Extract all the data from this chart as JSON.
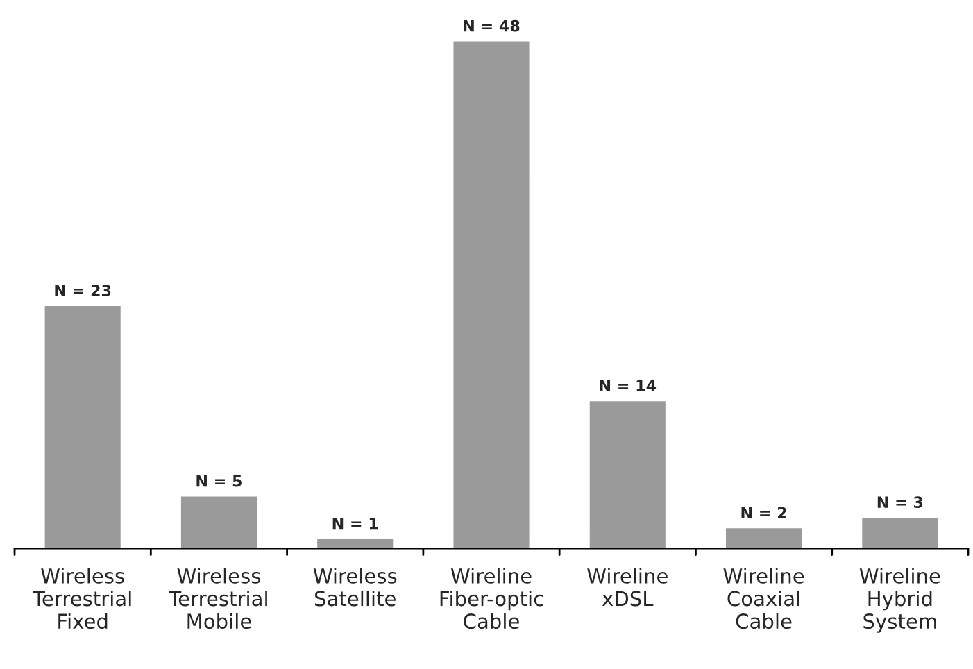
{
  "chart_data": {
    "type": "bar",
    "categories": [
      "Wireless\nTerrestrial\nFixed",
      "Wireless\nTerrestrial\nMobile",
      "Wireless\nSatellite",
      "Wireline\nFiber-optic\nCable",
      "Wireline\nxDSL",
      "Wireline\nCoaxial\nCable",
      "Wireline\nHybrid\nSystem"
    ],
    "values": [
      23,
      5,
      1,
      48,
      14,
      2,
      3
    ],
    "value_labels": [
      "N = 23",
      "N = 5",
      "N = 1",
      "N = 48",
      "N = 14",
      "N = 2",
      "N = 3"
    ],
    "color": "#9a9a9a",
    "grid": false,
    "legend": false
  }
}
